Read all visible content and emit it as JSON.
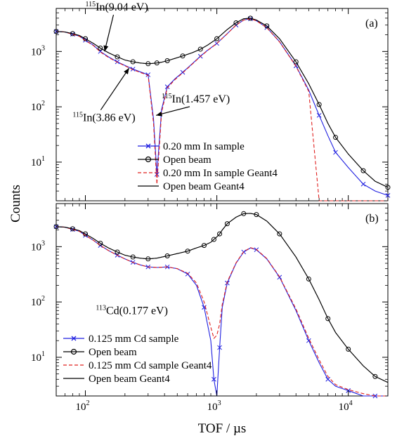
{
  "figure": {
    "ylabel": "Counts",
    "xlabel": "TOF / µs"
  },
  "colors": {
    "sample": "#1f1fe0",
    "open": "#000000",
    "sim_sample": "#e0201f",
    "sim_open": "#000000"
  },
  "chart_data": [
    {
      "type": "line",
      "panel_label": "(a)",
      "xscale": "log",
      "yscale": "log",
      "xlim": [
        60,
        20000
      ],
      "ylim": [
        2,
        6000
      ],
      "x_tick_labels": [
        "10",
        "10",
        "10"
      ],
      "x_tick_exponents": [
        "2",
        "3",
        "4"
      ],
      "y_tick_labels": [
        "10",
        "10",
        "10"
      ],
      "y_tick_exponents": [
        "1",
        "2",
        "3"
      ],
      "x": [
        60,
        70,
        80,
        90,
        100,
        115,
        130,
        150,
        175,
        200,
        230,
        260,
        300,
        330,
        350,
        380,
        420,
        480,
        550,
        650,
        750,
        850,
        1000,
        1200,
        1400,
        1600,
        1800,
        2000,
        2400,
        3000,
        4000,
        5000,
        6000,
        7000,
        8000,
        10000,
        13000,
        16000,
        20000
      ],
      "series": [
        {
          "name": "0.20 mm In sample",
          "style": "sample",
          "values": [
            2300,
            2250,
            2050,
            1900,
            1600,
            1300,
            1000,
            800,
            650,
            560,
            480,
            430,
            380,
            60,
            6,
            90,
            230,
            320,
            420,
            600,
            820,
            1050,
            1400,
            2100,
            3000,
            3700,
            3900,
            3600,
            2700,
            1500,
            550,
            200,
            70,
            30,
            15,
            8,
            4,
            3,
            2.5
          ]
        },
        {
          "name": "Open beam",
          "style": "open",
          "values": [
            2300,
            2250,
            2100,
            1950,
            1700,
            1400,
            1150,
            950,
            800,
            700,
            650,
            620,
            600,
            610,
            620,
            640,
            680,
            750,
            830,
            950,
            1100,
            1300,
            1700,
            2500,
            3300,
            3900,
            4000,
            3700,
            2900,
            1700,
            650,
            260,
            110,
            50,
            28,
            14,
            7,
            4.5,
            3.5
          ]
        },
        {
          "name": "0.20 mm In sample Geant4",
          "style": "sim_sample",
          "values": [
            2300,
            2250,
            2050,
            1880,
            1580,
            1280,
            980,
            780,
            640,
            550,
            470,
            420,
            370,
            50,
            4,
            80,
            220,
            310,
            410,
            590,
            810,
            1040,
            1390,
            2090,
            2990,
            3690,
            3890,
            3590,
            2690,
            1490,
            540,
            190,
            2,
            2,
            2,
            2,
            2,
            2,
            2
          ]
        },
        {
          "name": "Open beam Geant4",
          "style": "sim_open",
          "values": [
            2300,
            2250,
            2100,
            1950,
            1700,
            1400,
            1150,
            950,
            800,
            700,
            650,
            620,
            600,
            610,
            620,
            640,
            680,
            750,
            830,
            950,
            1100,
            1300,
            1700,
            2500,
            3300,
            3900,
            4000,
            3700,
            2900,
            1700,
            650,
            260,
            110,
            50,
            28,
            14,
            7,
            4.5,
            3.5
          ]
        }
      ],
      "annotations": [
        {
          "sup": "115",
          "text": "In(9.04 eV)",
          "tx": 100,
          "ty": 5500,
          "ax": 140,
          "ay": 1000
        },
        {
          "sup": "115",
          "text": "In(3.86 eV)",
          "tx": 80,
          "ty": 55,
          "ax": 215,
          "ay": 500
        },
        {
          "sup": "115",
          "text": "In(1.457 eV)",
          "tx": 380,
          "ty": 120,
          "ax": 345,
          "ay": 70
        }
      ],
      "legend": {
        "location": "center-bottom"
      }
    },
    {
      "type": "line",
      "panel_label": "(b)",
      "xscale": "log",
      "yscale": "log",
      "xlim": [
        60,
        20000
      ],
      "ylim": [
        2,
        6000
      ],
      "x_tick_labels": [
        "10",
        "10",
        "10"
      ],
      "x_tick_exponents": [
        "2",
        "3",
        "4"
      ],
      "y_tick_labels": [
        "10",
        "10",
        "10"
      ],
      "y_tick_exponents": [
        "1",
        "2",
        "3"
      ],
      "x": [
        60,
        70,
        80,
        90,
        100,
        115,
        130,
        150,
        175,
        200,
        230,
        260,
        300,
        350,
        420,
        500,
        600,
        700,
        800,
        900,
        950,
        1000,
        1050,
        1100,
        1200,
        1400,
        1600,
        1800,
        2000,
        2400,
        3000,
        4000,
        5000,
        6000,
        7000,
        8000,
        10000,
        13000,
        16000,
        20000
      ],
      "series": [
        {
          "name": "0.125 mm Cd sample",
          "style": "sample",
          "values": [
            2300,
            2250,
            2050,
            1900,
            1600,
            1300,
            1050,
            850,
            700,
            600,
            520,
            470,
            430,
            420,
            430,
            400,
            320,
            200,
            80,
            20,
            4,
            2,
            15,
            80,
            220,
            500,
            800,
            950,
            880,
            600,
            280,
            70,
            20,
            8,
            4,
            3,
            2.5,
            2,
            2,
            2
          ]
        },
        {
          "name": "Open beam",
          "style": "open",
          "values": [
            2300,
            2250,
            2100,
            1950,
            1700,
            1400,
            1150,
            950,
            800,
            700,
            650,
            620,
            600,
            620,
            680,
            750,
            830,
            950,
            1050,
            1200,
            1350,
            1500,
            1700,
            2000,
            2600,
            3400,
            3950,
            4000,
            3800,
            2900,
            1700,
            650,
            260,
            110,
            50,
            28,
            14,
            7,
            4.5,
            3.5
          ]
        },
        {
          "name": "0.125 mm Cd sample Geant4",
          "style": "sim_sample",
          "values": [
            2300,
            2250,
            2050,
            1900,
            1600,
            1300,
            1050,
            850,
            700,
            600,
            520,
            470,
            430,
            420,
            430,
            400,
            330,
            220,
            100,
            35,
            22,
            25,
            40,
            90,
            230,
            510,
            810,
            960,
            890,
            610,
            285,
            75,
            22,
            9,
            4.5,
            3.2,
            2.6,
            2.2,
            2,
            2
          ]
        },
        {
          "name": "Open beam Geant4",
          "style": "sim_open",
          "values": [
            2300,
            2250,
            2100,
            1950,
            1700,
            1400,
            1150,
            950,
            800,
            700,
            650,
            620,
            600,
            620,
            680,
            750,
            830,
            950,
            1050,
            1200,
            1350,
            1500,
            1700,
            2000,
            2600,
            3400,
            3950,
            4000,
            3800,
            2900,
            1700,
            650,
            260,
            110,
            50,
            28,
            14,
            7,
            4.5,
            3.5
          ]
        }
      ],
      "annotations": [
        {
          "sup": "113",
          "text": "Cd(0.177 eV)",
          "tx": 120,
          "ty": 60,
          "ax": null,
          "ay": null
        }
      ],
      "legend": {
        "location": "bottom-left"
      }
    }
  ]
}
